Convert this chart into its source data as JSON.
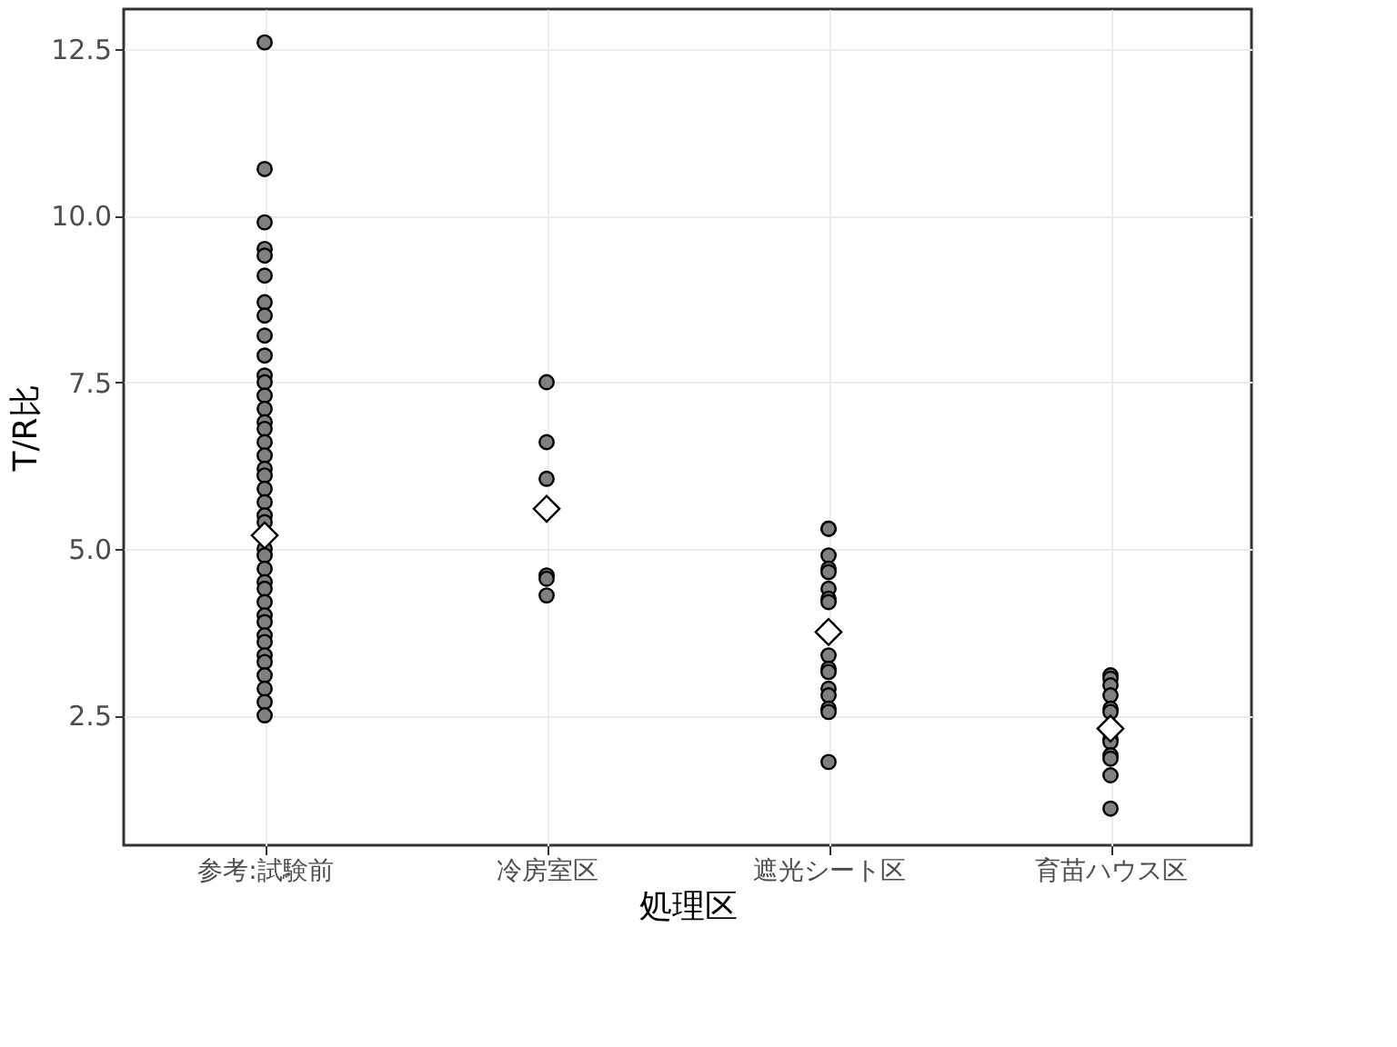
{
  "chart_data": {
    "type": "scatter",
    "xlabel": "処理区",
    "ylabel": "T/R比",
    "categories": [
      "参考:試験前",
      "冷房室区",
      "遮光シート区",
      "育苗ハウス区"
    ],
    "series": [
      {
        "color": "#808080",
        "marker": "circle",
        "x": [
          "参考:試験前",
          "参考:試験前",
          "参考:試験前",
          "参考:試験前",
          "参考:試験前",
          "参考:試験前",
          "参考:試験前",
          "参考:試験前",
          "参考:試験前",
          "参考:試験前",
          "参考:試験前",
          "参考:試験前",
          "参考:試験前",
          "参考:試験前",
          "参考:試験前",
          "参考:試験前",
          "参考:試験前",
          "参考:試験前",
          "参考:試験前",
          "参考:試験前",
          "参考:試験前",
          "参考:試験前",
          "参考:試験前",
          "参考:試験前",
          "参考:試験前",
          "参考:試験前",
          "参考:試験前",
          "参考:試験前",
          "参考:試験前",
          "参考:試験前",
          "参考:試験前",
          "参考:試験前",
          "参考:試験前",
          "参考:試験前",
          "参考:試験前",
          "参考:試験前",
          "参考:試験前",
          "参考:試験前",
          "参考:試験前",
          "参考:試験前",
          "冷房室区",
          "冷房室区",
          "冷房室区",
          "冷房室区",
          "冷房室区",
          "冷房室区",
          "遮光シート区",
          "遮光シート区",
          "遮光シート区",
          "遮光シート区",
          "遮光シート区",
          "遮光シート区",
          "遮光シート区",
          "遮光シート区",
          "遮光シート区",
          "遮光シート区",
          "遮光シート区",
          "遮光シート区",
          "遮光シート区",
          "遮光シート区",
          "遮光シート区",
          "遮光シート区",
          "遮光シート区",
          "育苗ハウス区",
          "育苗ハウス区",
          "育苗ハウス区",
          "育苗ハウス区",
          "育苗ハウス区",
          "育苗ハウス区",
          "育苗ハウス区",
          "育苗ハウス区",
          "育苗ハウス区",
          "育苗ハウス区",
          "育苗ハウス区",
          "育苗ハウス区"
        ],
        "values": [
          12.6,
          10.7,
          9.9,
          9.5,
          9.4,
          9.1,
          8.7,
          8.5,
          8.2,
          7.9,
          7.6,
          7.5,
          7.3,
          7.1,
          6.9,
          6.8,
          6.6,
          6.4,
          6.2,
          6.1,
          5.9,
          5.7,
          5.5,
          5.4,
          5.0,
          4.9,
          4.7,
          4.5,
          4.4,
          4.2,
          4.0,
          3.9,
          3.7,
          3.6,
          3.4,
          3.3,
          3.1,
          2.9,
          2.7,
          2.5,
          7.5,
          6.6,
          6.05,
          4.6,
          4.55,
          4.3,
          5.3,
          5.3,
          4.9,
          4.7,
          4.65,
          4.4,
          4.25,
          4.2,
          3.8,
          3.4,
          3.2,
          3.15,
          2.9,
          2.8,
          2.6,
          2.55,
          1.8,
          3.1,
          3.05,
          2.95,
          2.8,
          2.6,
          2.55,
          2.15,
          2.1,
          1.9,
          1.85,
          1.6,
          1.1
        ]
      },
      {
        "color": "#ffffff",
        "marker": "diamond",
        "x": [
          "参考:試験前",
          "冷房室区",
          "遮光シート区",
          "育苗ハウス区"
        ],
        "values": [
          5.2,
          5.6,
          3.75,
          2.3
        ]
      }
    ],
    "ylim": [
      0.55,
      13.1
    ],
    "yticks": [
      2.5,
      {
        "value": 5,
        "label": "5.0"
      },
      7.5,
      {
        "value": 10,
        "label": "10.0"
      },
      12.5
    ],
    "grid": true
  }
}
